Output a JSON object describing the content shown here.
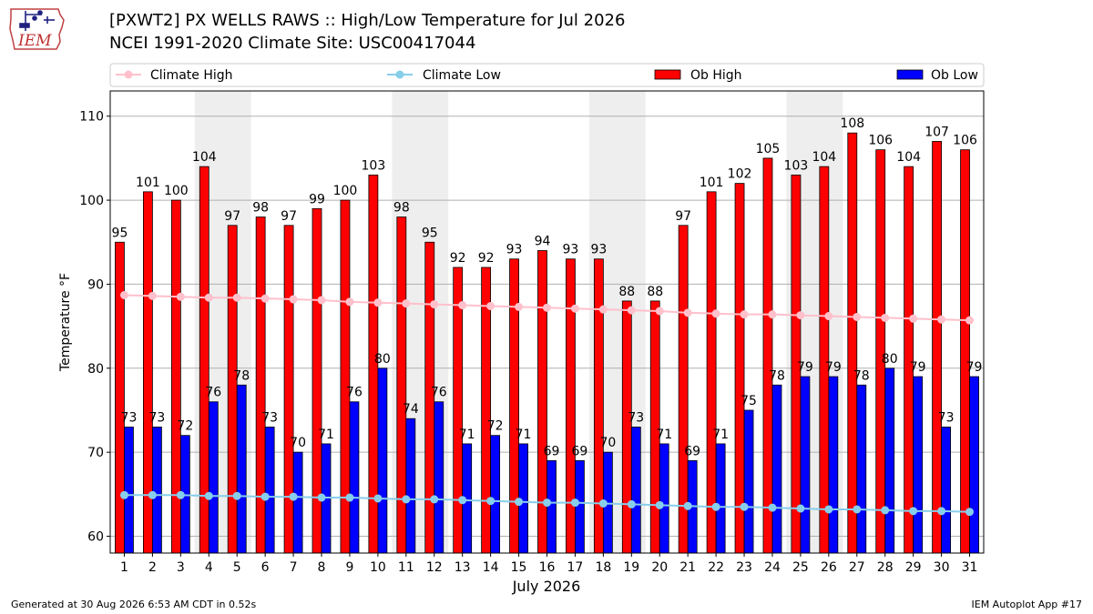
{
  "logo": {
    "text": "IEM",
    "icon": "iowa-map-weather-station-icon"
  },
  "title": "[PXWT2] PX WELLS RAWS :: High/Low Temperature for Jul 2026",
  "subtitle": "NCEI 1991-2020 Climate Site: USC00417044",
  "footer": {
    "left": "Generated at 30 Aug 2026 6:53 AM CDT in 0.52s",
    "right": "IEM Autoplot App #17"
  },
  "colors": {
    "ob_high": "#ff0000",
    "ob_low": "#0000ff",
    "climate_high": "#ffc0cb",
    "climate_low": "#87ceeb",
    "weekend_shade": "#eeeeee",
    "grid": "#b0b0b0"
  },
  "chart_data": {
    "type": "bar",
    "xlabel": "July 2026",
    "ylabel": "Temperature °F",
    "ylim": [
      58,
      113
    ],
    "yticks": [
      60,
      70,
      80,
      90,
      100,
      110
    ],
    "grid": "horizontal",
    "legend_position": "top",
    "categories": [
      "1",
      "2",
      "3",
      "4",
      "5",
      "6",
      "7",
      "8",
      "9",
      "10",
      "11",
      "12",
      "13",
      "14",
      "15",
      "16",
      "17",
      "18",
      "19",
      "20",
      "21",
      "22",
      "23",
      "24",
      "25",
      "26",
      "27",
      "28",
      "29",
      "30",
      "31"
    ],
    "shaded_days": [
      [
        "4",
        "5"
      ],
      [
        "11",
        "12"
      ],
      [
        "18",
        "19"
      ],
      [
        "25",
        "26"
      ]
    ],
    "series": [
      {
        "name": "Ob High",
        "kind": "bar",
        "values": [
          95,
          101,
          100,
          104,
          97,
          98,
          97,
          99,
          100,
          103,
          98,
          95,
          92,
          92,
          93,
          94,
          93,
          93,
          88,
          88,
          97,
          101,
          102,
          105,
          103,
          104,
          108,
          106,
          104,
          107,
          106
        ]
      },
      {
        "name": "Ob Low",
        "kind": "bar",
        "values": [
          73,
          73,
          72,
          76,
          78,
          73,
          70,
          71,
          76,
          80,
          74,
          76,
          71,
          72,
          71,
          69,
          69,
          70,
          73,
          71,
          69,
          71,
          75,
          78,
          79,
          79,
          78,
          80,
          79,
          73,
          79
        ]
      },
      {
        "name": "Climate High",
        "kind": "line",
        "values": [
          88.7,
          88.6,
          88.5,
          88.4,
          88.4,
          88.3,
          88.2,
          88.1,
          87.9,
          87.8,
          87.7,
          87.6,
          87.5,
          87.4,
          87.3,
          87.2,
          87.1,
          87.0,
          86.9,
          86.8,
          86.6,
          86.5,
          86.4,
          86.4,
          86.3,
          86.2,
          86.1,
          86.0,
          85.9,
          85.8,
          85.7
        ]
      },
      {
        "name": "Climate Low",
        "kind": "line",
        "values": [
          64.9,
          64.9,
          64.9,
          64.8,
          64.8,
          64.7,
          64.7,
          64.6,
          64.6,
          64.5,
          64.4,
          64.4,
          64.3,
          64.2,
          64.1,
          64.0,
          64.0,
          63.9,
          63.8,
          63.7,
          63.6,
          63.5,
          63.5,
          63.4,
          63.3,
          63.2,
          63.2,
          63.1,
          63.0,
          63.0,
          62.9
        ]
      }
    ]
  }
}
